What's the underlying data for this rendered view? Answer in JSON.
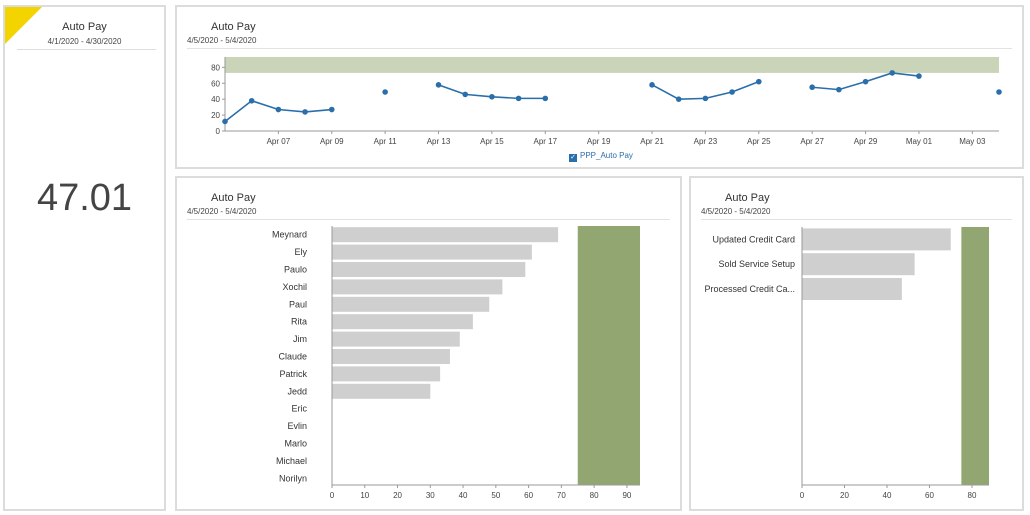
{
  "kpi": {
    "title": "Auto Pay",
    "date_range": "4/1/2020 - 4/30/2020",
    "value": "47.01",
    "flag_color": "#f4d400"
  },
  "colors": {
    "line": "#2a6faa",
    "band": "#c9d4b8",
    "bar": "#cfcfcf",
    "target": "#92a672"
  },
  "line_panel": {
    "title": "Auto Pay",
    "date_range": "4/5/2020 - 5/4/2020",
    "legend": "PPP_Auto Pay"
  },
  "bar_panel_1": {
    "title": "Auto Pay",
    "date_range": "4/5/2020 - 5/4/2020"
  },
  "bar_panel_2": {
    "title": "Auto Pay",
    "date_range": "4/5/2020 - 5/4/2020"
  },
  "chart_data": [
    {
      "type": "line",
      "x_tick_labels": [
        "Apr 07",
        "Apr 09",
        "Apr 11",
        "Apr 13",
        "Apr 15",
        "Apr 17",
        "Apr 19",
        "Apr 21",
        "Apr 23",
        "Apr 25",
        "Apr 27",
        "Apr 29",
        "May 01",
        "May 03"
      ],
      "x": [
        "Apr 05",
        "Apr 06",
        "Apr 07",
        "Apr 08",
        "Apr 09",
        "Apr 10",
        "Apr 11",
        "Apr 12",
        "Apr 13",
        "Apr 14",
        "Apr 15",
        "Apr 16",
        "Apr 17",
        "Apr 18",
        "Apr 19",
        "Apr 20",
        "Apr 21",
        "Apr 22",
        "Apr 23",
        "Apr 24",
        "Apr 25",
        "Apr 26",
        "Apr 27",
        "Apr 28",
        "Apr 29",
        "Apr 30",
        "May 01",
        "May 02",
        "May 03",
        "May 04"
      ],
      "series": [
        {
          "values": [
            12,
            38,
            27,
            24,
            27,
            null,
            49,
            null,
            58,
            46,
            43,
            41,
            41,
            null,
            null,
            null,
            58,
            40,
            41,
            49,
            62,
            null,
            55,
            52,
            62,
            73,
            69,
            null,
            null,
            49
          ]
        }
      ],
      "target_band": [
        73,
        93
      ],
      "ylim": [
        0,
        93
      ],
      "yticks": [
        0,
        20,
        40,
        60,
        80
      ],
      "legend_position": "bottom"
    },
    {
      "type": "bar",
      "orientation": "horizontal",
      "categories": [
        "Meynard",
        "Ely",
        "Paulo",
        "Xochil",
        "Paul",
        "Rita",
        "Jim",
        "Claude",
        "Patrick",
        "Jedd",
        "Eric",
        "Evlin",
        "Marlo",
        "Michael",
        "Norilyn"
      ],
      "values": [
        69,
        61,
        59,
        52,
        48,
        43,
        39,
        36,
        33,
        30,
        null,
        null,
        null,
        null,
        null
      ],
      "target_band": [
        75,
        94
      ],
      "xlim": [
        0,
        94
      ],
      "xticks": [
        0,
        10,
        20,
        30,
        40,
        50,
        60,
        70,
        80,
        90
      ]
    },
    {
      "type": "bar",
      "orientation": "horizontal",
      "categories": [
        "Updated Credit Card",
        "Sold Service Setup",
        "Processed Credit Ca..."
      ],
      "values": [
        70,
        53,
        47
      ],
      "target_band": [
        75,
        88
      ],
      "xlim": [
        0,
        88
      ],
      "xticks": [
        0,
        20,
        40,
        60,
        80
      ]
    }
  ]
}
